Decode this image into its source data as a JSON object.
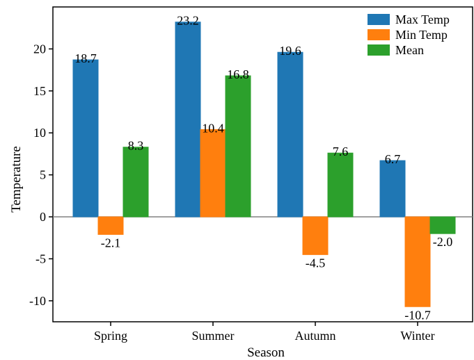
{
  "chart_data": {
    "type": "bar",
    "categories": [
      "Spring",
      "Summer",
      "Autumn",
      "Winter"
    ],
    "series": [
      {
        "name": "Max Temp",
        "values": [
          18.7,
          23.2,
          19.6,
          6.7
        ],
        "color": "#1f77b4"
      },
      {
        "name": "Min Temp",
        "values": [
          -2.1,
          10.4,
          -4.5,
          -10.7
        ],
        "color": "#ff7f0e"
      },
      {
        "name": "Mean",
        "values": [
          8.3,
          16.8,
          7.6,
          -2.0
        ],
        "color": "#2ca02c"
      }
    ],
    "data_labels": [
      [
        "18.7",
        "23.2",
        "19.6",
        "6.7"
      ],
      [
        "-2.1",
        "10.4",
        "-4.5",
        "-10.7"
      ],
      [
        "8.3",
        "16.8",
        "7.6",
        "-2.0"
      ]
    ],
    "title": "",
    "xlabel": "Season",
    "ylabel": "Temperature",
    "ylim": [
      -12.5,
      25
    ],
    "yticks": [
      -10,
      -5,
      0,
      5,
      10,
      15,
      20
    ],
    "ytick_labels": [
      "-10",
      "-5",
      "0",
      "5",
      "10",
      "15",
      "20"
    ],
    "grid": false,
    "legend_position": "top-right",
    "zero_line": true
  }
}
